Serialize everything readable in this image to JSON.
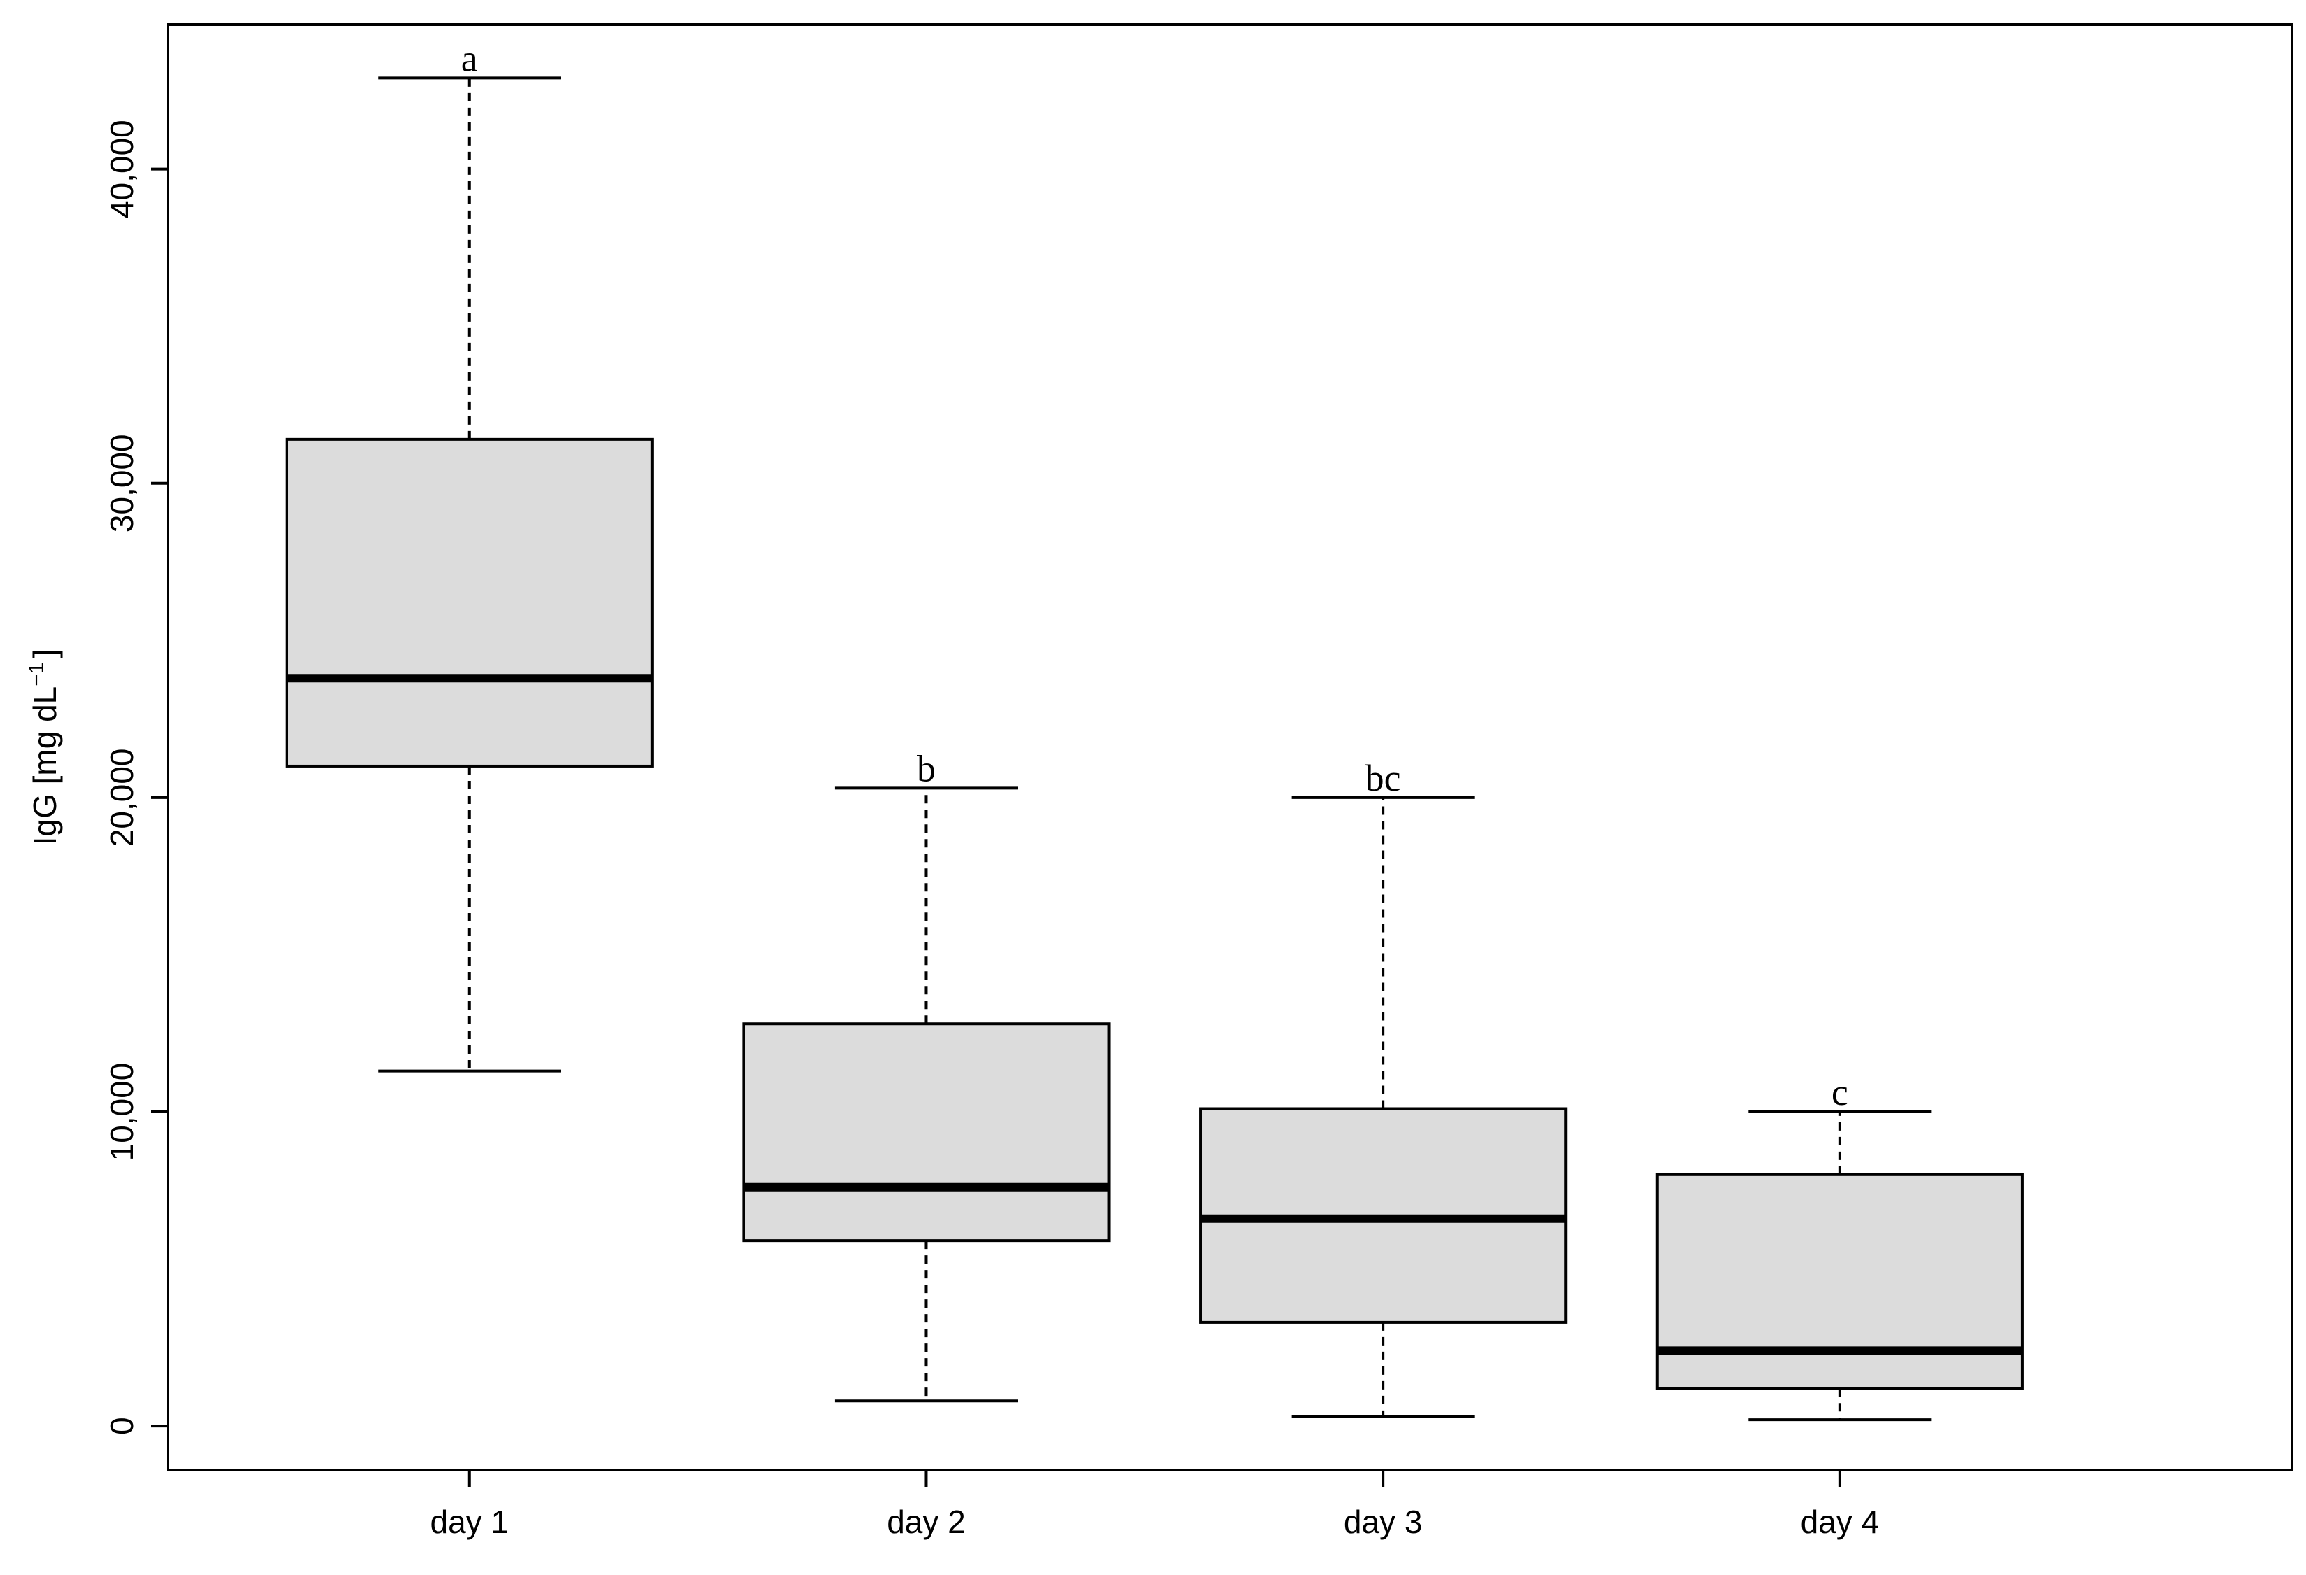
{
  "chart_data": {
    "type": "box",
    "title": "",
    "xlabel": "",
    "ylabel": "IgG [mg dL",
    "ylabel_sup": "−1",
    "ylabel_close": "]",
    "ylim": [
      -1400,
      44600
    ],
    "yticks": [
      0,
      10000,
      20000,
      30000,
      40000
    ],
    "ytick_labels": [
      "0",
      "10,000",
      "20,000",
      "30,000",
      "40,000"
    ],
    "categories": [
      "day 1",
      "day 2",
      "day 3",
      "day 4"
    ],
    "boxes": [
      {
        "label": "day 1",
        "min": 11300,
        "q1": 21000,
        "median": 23800,
        "q3": 31400,
        "max": 42900,
        "letter": "a"
      },
      {
        "label": "day 2",
        "min": 800,
        "q1": 5900,
        "median": 7600,
        "q3": 12800,
        "max": 20300,
        "letter": "b"
      },
      {
        "label": "day 3",
        "min": 300,
        "q1": 3300,
        "median": 6600,
        "q3": 10100,
        "max": 20000,
        "letter": "bc"
      },
      {
        "label": "day 4",
        "min": 200,
        "q1": 1200,
        "median": 2400,
        "q3": 8000,
        "max": 10000,
        "letter": "c"
      }
    ],
    "box_fill": "#dcdcdc",
    "line_color": "#000000",
    "grid": false,
    "legend": "none"
  }
}
